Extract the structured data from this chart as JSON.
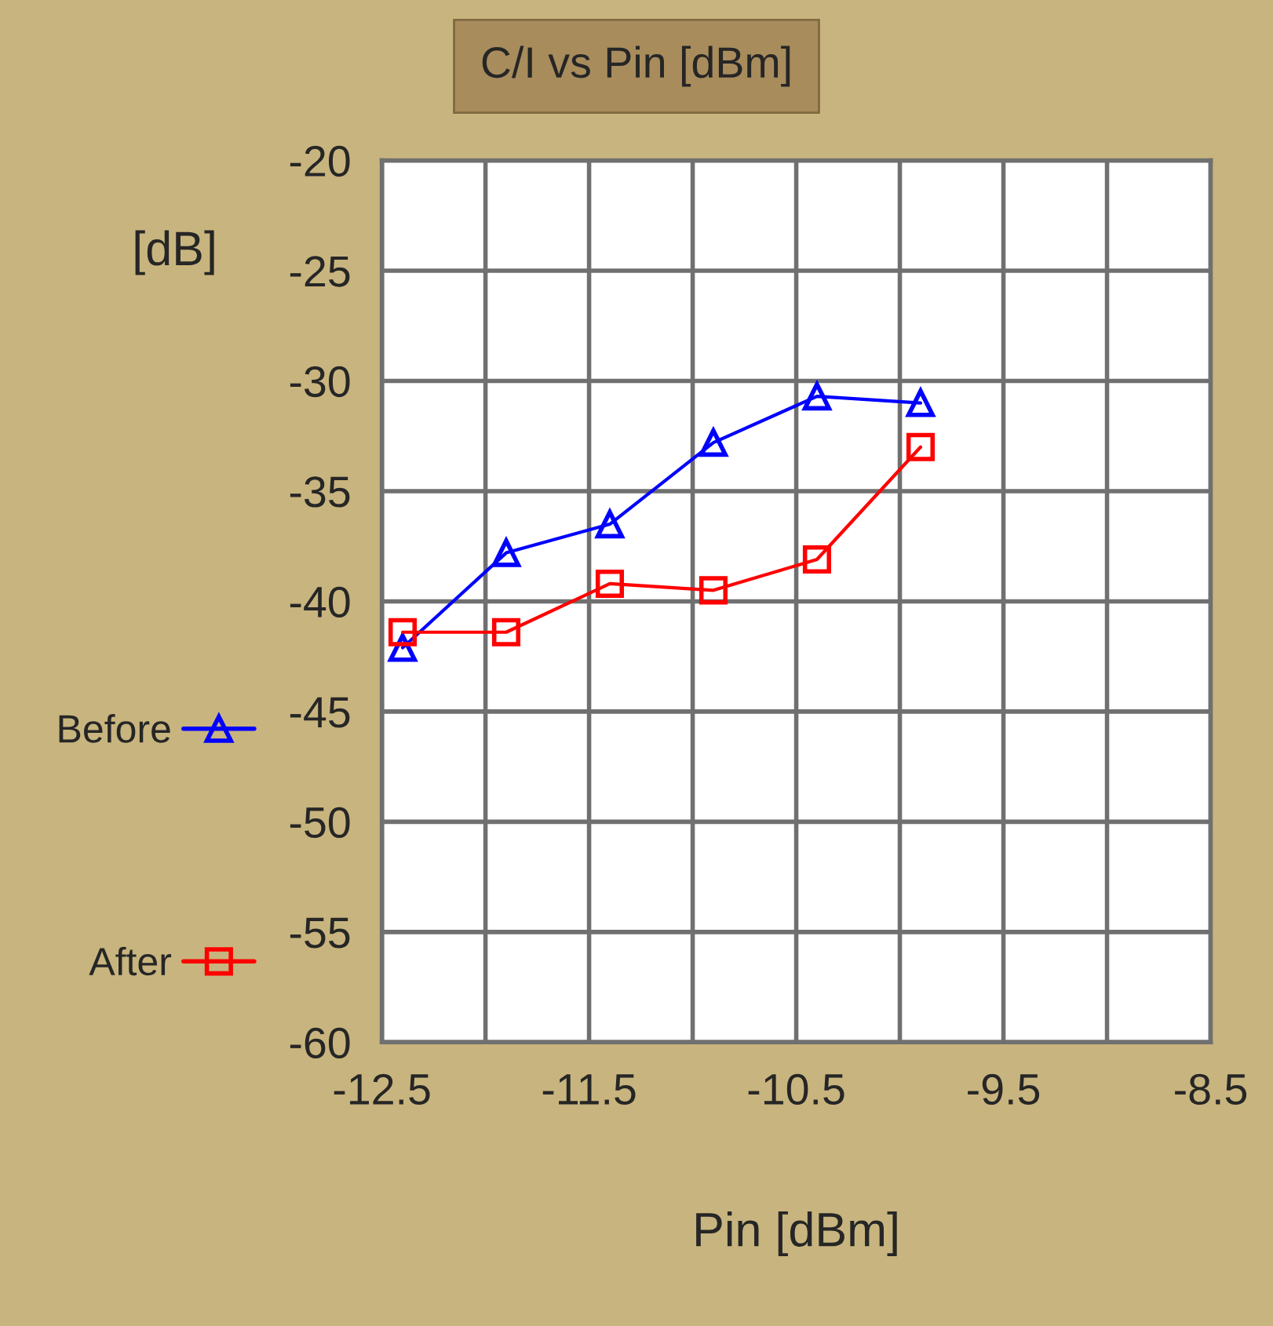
{
  "chart_data": {
    "type": "line",
    "title": "C/I vs Pin [dBm]",
    "xlabel": "Pin [dBm]",
    "ylabel": "[dB]",
    "x": [
      -12.4,
      -11.9,
      -11.4,
      -10.9,
      -10.4,
      -9.9
    ],
    "series": [
      {
        "name": "Before",
        "color": "#0000ff",
        "marker": "triangle",
        "values": [
          -42.1,
          -37.8,
          -36.5,
          -32.8,
          -30.7,
          -31.0
        ]
      },
      {
        "name": "After",
        "color": "#ff0000",
        "marker": "square",
        "values": [
          -41.4,
          -41.4,
          -39.2,
          -39.5,
          -38.1,
          -33.0
        ]
      }
    ],
    "xlim": [
      -12.5,
      -8.5
    ],
    "xticks": [
      -12.5,
      {
        "value": -12,
        "label": null
      },
      -11.5,
      {
        "value": -11,
        "label": null
      },
      -10.5,
      {
        "value": -10,
        "label": null
      },
      -9.5,
      {
        "value": -9,
        "label": null
      },
      -8.5
    ],
    "ylim": [
      -60,
      -20
    ],
    "yticks": [
      -60,
      -55,
      -50,
      -45,
      -40,
      -35,
      -30,
      -25,
      -20
    ],
    "grid": true,
    "legend": "left",
    "line_style": "solid"
  }
}
